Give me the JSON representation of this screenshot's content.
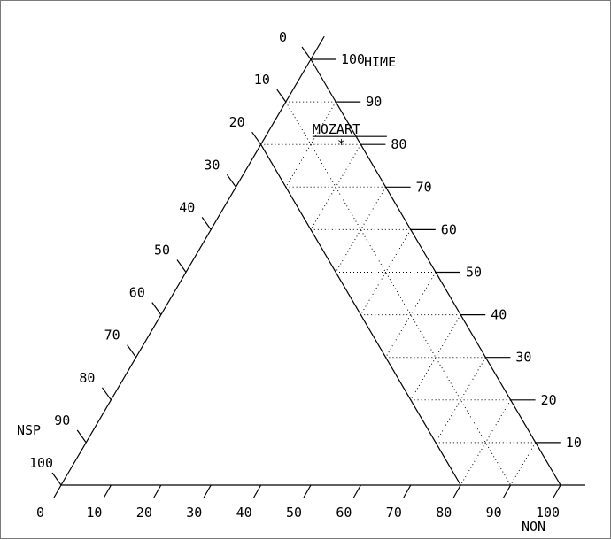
{
  "chart_data": {
    "type": "ternary",
    "corner_labels": {
      "top": "HIME",
      "left": "NSP",
      "right": "NON"
    },
    "tick_labels": [
      "0",
      "10",
      "20",
      "30",
      "40",
      "50",
      "60",
      "70",
      "80",
      "90",
      "100"
    ],
    "grid": true,
    "points": [
      {
        "label": "MOZART",
        "HIME": 80,
        "NON": 16,
        "NSP": 4
      }
    ],
    "boundary": {
      "NSP_min": 0,
      "NSP_max": 100,
      "inner_line_NSP": 20
    }
  }
}
